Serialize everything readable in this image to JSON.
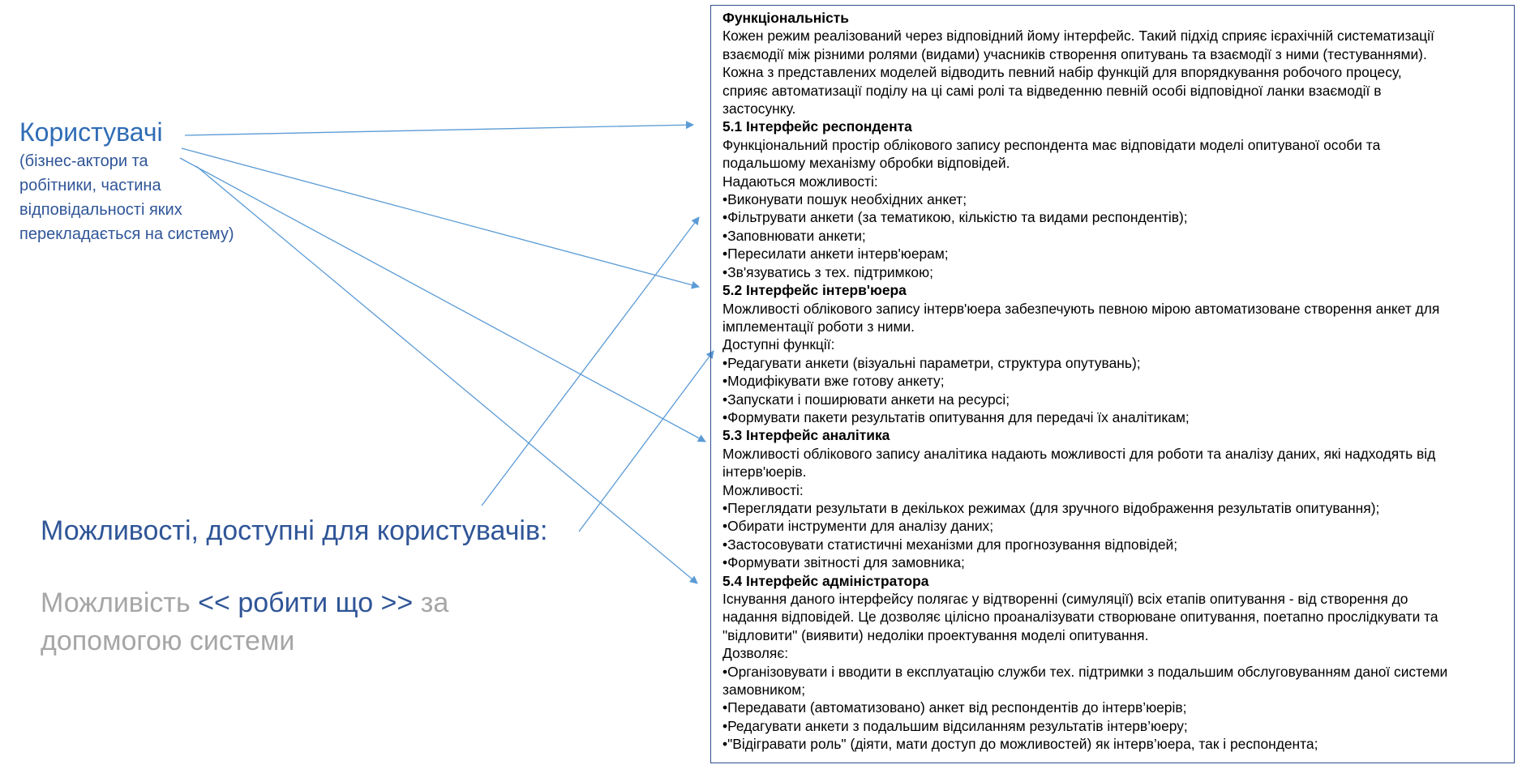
{
  "users": {
    "title": "Користувачі",
    "subtitle_lines": [
      "(бізнес-актори та",
      "робітники, частина",
      "відповідальності яких",
      "перекладається на систему)"
    ]
  },
  "capabilities": {
    "heading": "Можливості, доступні для користувачів:",
    "template": {
      "prefix": "Можливість ",
      "verb": "<< робити що >>",
      "suffix": "  за допомогою системи"
    }
  },
  "colors": {
    "arrow": "#5b9bd5",
    "users_title": "#2f6cb5",
    "users_subtitle": "#2f5597",
    "grey_text": "#a6a6a6",
    "box_border": "#2f4f8f"
  },
  "functionality": {
    "lines": [
      {
        "text": "Функціональність",
        "bold": true
      },
      {
        "text": "Кожен режим реалізований через відповідний йому інтерфейс. Такий підхід сприяє ієрахічній систематизації"
      },
      {
        "text": "взаємодії між різними ролями (видами) учасників створення опитувань та взаємодії з ними (тестуваннями)."
      },
      {
        "text": "Кожна з представлених моделей відводить певний набір функцій для впорядкування робочого процесу,"
      },
      {
        "text": "сприяє автоматизації поділу на ці самі ролі та відведенню певній особі відповідної ланки взаємодії в"
      },
      {
        "text": "застосунку."
      },
      {
        "text": "5.1 Інтерфейс респондента",
        "bold": true
      },
      {
        "text": "Функціональний простір облікового запису респондента має відповідати моделі опитуваної особи та"
      },
      {
        "text": "подальшому механізму обробки відповідей."
      },
      {
        "text": "Надаються можливості:"
      },
      {
        "text": "•Виконувати пошук необхідних анкет;"
      },
      {
        "text": "•Фільтрувати анкети (за тематикою, кількістю та видами респондентів);"
      },
      {
        "text": "•Заповнювати анкети;"
      },
      {
        "text": "•Пересилати анкети інтерв'юерам;"
      },
      {
        "text": "•Зв'язуватись з тех. підтримкою;"
      },
      {
        "text": "5.2 Інтерфейс інтерв'юера",
        "bold": true
      },
      {
        "text": "Можливості облікового запису інтерв'юера забезпечують певною мірою автоматизоване створення анкет для"
      },
      {
        "text": "імплементації роботи з ними."
      },
      {
        "text": "Доступні функції:"
      },
      {
        "text": "•Редагувати анкети (візуальні параметри, структура опутувань);"
      },
      {
        "text": "•Модифікувати вже готову анкету;"
      },
      {
        "text": "•Запускати і поширювати анкети на ресурсі;"
      },
      {
        "text": "•Формувати пакети результатів опитування для передачі їх аналітикам;"
      },
      {
        "text": "5.3 Інтерфейс аналітика",
        "bold": true
      },
      {
        "text": "Можливості облікового запису аналітика надають можливості для роботи та аналізу даних, які надходять від"
      },
      {
        "text": "інтерв'юерів."
      },
      {
        "text": "Можливості:"
      },
      {
        "text": "•Переглядати результати в декількох режимах (для зручного відображення результатів опитування);"
      },
      {
        "text": "•Обирати інструменти для аналізу даних;"
      },
      {
        "text": "•Застосовувати статистичні механізми для прогнозування відповідей;"
      },
      {
        "text": "•Формувати звітності для замовника;"
      },
      {
        "text": "5.4 Інтерфейс адміністратора",
        "bold": true
      },
      {
        "text": "Існування даного інтерфейсу полягає у відтворенні (симуляції) всіх етапів опитування - від створення до"
      },
      {
        "text": "надання відповідей. Це дозволяє цілісно проаналізувати створюване опитування, поетапно прослідкувати та"
      },
      {
        "text": "\"відловити\" (виявити) недоліки проектування моделі опитування."
      },
      {
        "text": "Дозволяє:"
      },
      {
        "text": "•Організовувати і вводити в експлуатацію служби тех. підтримки з подальшим обслуговуванням даної системи"
      },
      {
        "text": "замовником;"
      },
      {
        "text": "•Передавати (автоматизовано) анкет від респондентів до інтерв’юерів;"
      },
      {
        "text": "•Редагувати анкети з подальшим відсиланням результатів інтерв’юеру;"
      },
      {
        "text": "•\"Відігравати роль\" (діяти, мати доступ до можливостей) як інтерв’юера, так і респондента;"
      }
    ]
  }
}
